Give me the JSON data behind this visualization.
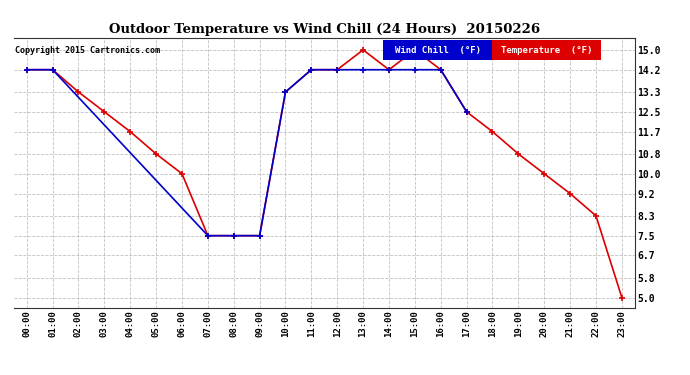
{
  "title": "Outdoor Temperature vs Wind Chill (24 Hours)  20150226",
  "copyright": "Copyright 2015 Cartronics.com",
  "x_labels": [
    "00:00",
    "01:00",
    "02:00",
    "03:00",
    "04:00",
    "05:00",
    "06:00",
    "07:00",
    "08:00",
    "09:00",
    "10:00",
    "11:00",
    "12:00",
    "13:00",
    "14:00",
    "15:00",
    "16:00",
    "17:00",
    "18:00",
    "19:00",
    "20:00",
    "21:00",
    "22:00",
    "23:00"
  ],
  "temperature_x": [
    0,
    1,
    2,
    3,
    4,
    5,
    6,
    7,
    8,
    9,
    10,
    11,
    12,
    13,
    14,
    15,
    16,
    17,
    18,
    19,
    20,
    21,
    22,
    23
  ],
  "temperature_y": [
    14.2,
    14.2,
    13.3,
    12.5,
    11.7,
    10.8,
    10.0,
    7.5,
    7.5,
    7.5,
    13.3,
    14.2,
    14.2,
    15.0,
    14.2,
    15.0,
    14.2,
    12.5,
    11.7,
    10.8,
    10.0,
    9.2,
    8.3,
    5.0
  ],
  "wind_chill_x": [
    0,
    1,
    7,
    8,
    9,
    10,
    11,
    12,
    13,
    14,
    15,
    16,
    17
  ],
  "wind_chill_y": [
    14.2,
    14.2,
    7.5,
    7.5,
    7.5,
    13.3,
    14.2,
    14.2,
    14.2,
    14.2,
    14.2,
    14.2,
    12.5
  ],
  "temp_color": "#dd0000",
  "wind_chill_color": "#0000cc",
  "ylim": [
    4.6,
    15.5
  ],
  "yticks": [
    5.0,
    5.8,
    6.7,
    7.5,
    8.3,
    9.2,
    10.0,
    10.8,
    11.7,
    12.5,
    13.3,
    14.2,
    15.0
  ],
  "bg_color": "#ffffff",
  "grid_color": "#bbbbbb",
  "legend_wind_chill_bg": "#0000cc",
  "legend_temp_bg": "#dd0000",
  "legend_text_color": "#ffffff",
  "fig_width": 6.9,
  "fig_height": 3.75,
  "dpi": 100
}
